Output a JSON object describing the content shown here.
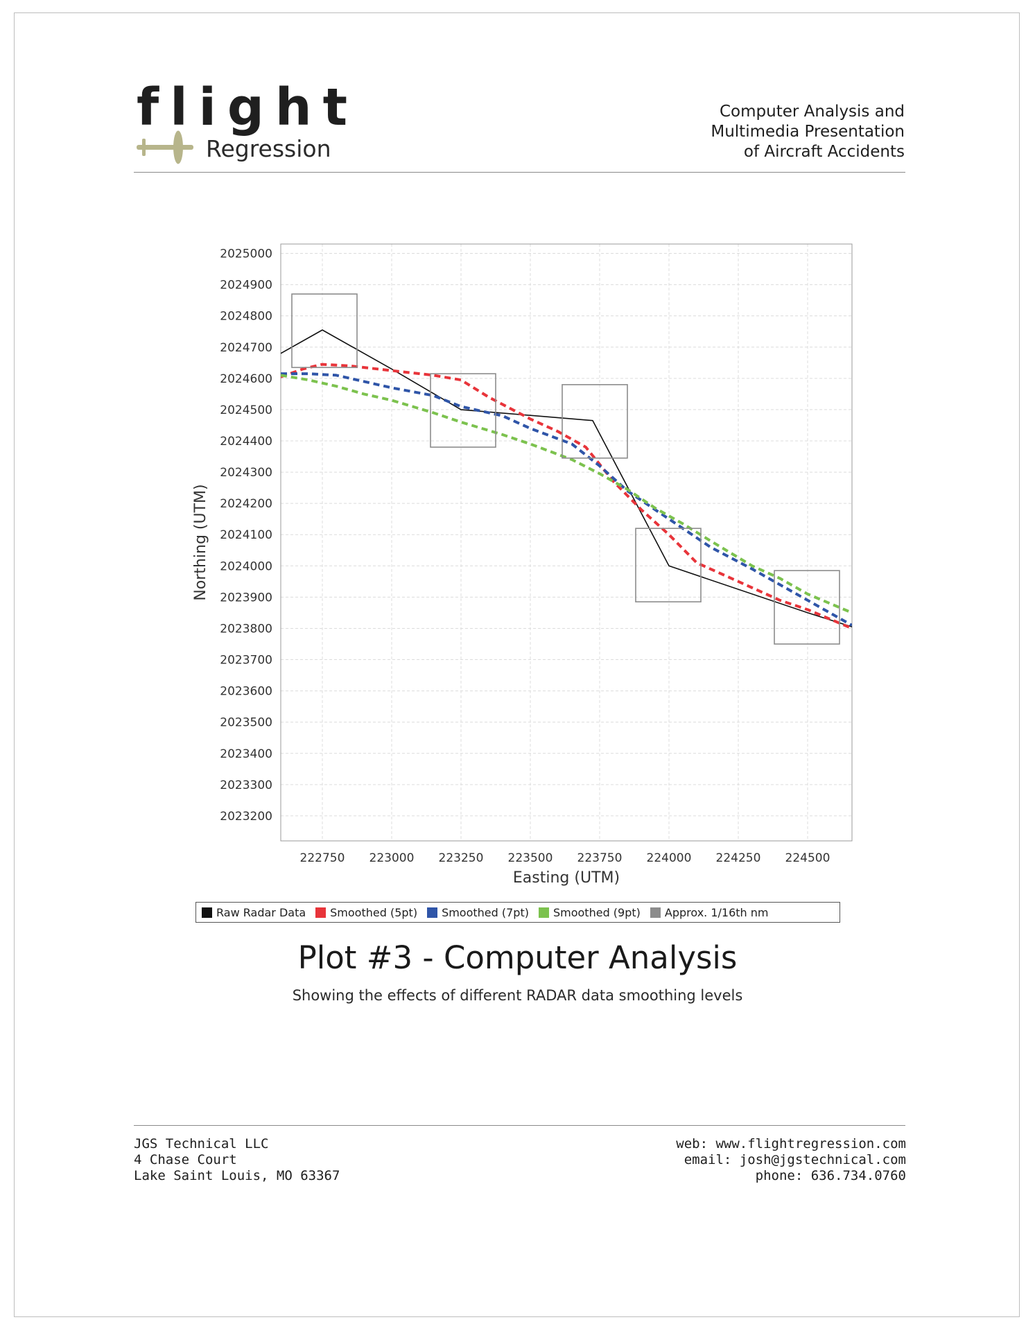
{
  "header": {
    "logo_word": "flight",
    "logo_sub": "Regression",
    "tagline": [
      "Computer Analysis and",
      "Multimedia Presentation",
      "of Aircraft Accidents"
    ]
  },
  "legend": [
    {
      "label": "Raw Radar Data",
      "color": "#111111"
    },
    {
      "label": "Smoothed (5pt)",
      "color": "#e8343a"
    },
    {
      "label": "Smoothed (7pt)",
      "color": "#2f55a8"
    },
    {
      "label": "Smoothed (9pt)",
      "color": "#7cc24e"
    },
    {
      "label": "Approx. 1/16th nm",
      "color": "#8c8c8c"
    }
  ],
  "plot_title": "Plot #3 - Computer Analysis",
  "plot_subtitle": "Showing the effects of different RADAR data smoothing levels",
  "footer": {
    "left": [
      "JGS Technical LLC",
      "4 Chase Court",
      "Lake Saint Louis, MO 63367"
    ],
    "right": [
      "web: www.flightregression.com",
      "email: josh@jgstechnical.com",
      "phone: 636.734.0760"
    ]
  },
  "chart_data": {
    "type": "line",
    "title": "",
    "xlabel": "Easting (UTM)",
    "ylabel": "Northing (UTM)",
    "xlim": [
      222600,
      224660
    ],
    "ylim": [
      2023120,
      2025030
    ],
    "xticks": [
      222750,
      223000,
      223250,
      223500,
      223750,
      224000,
      224250,
      224500
    ],
    "yticks": [
      2023200,
      2023300,
      2023400,
      2023500,
      2023600,
      2023700,
      2023800,
      2023900,
      2024000,
      2024100,
      2024200,
      2024300,
      2024400,
      2024500,
      2024600,
      2024700,
      2024800,
      2024900,
      2025000
    ],
    "grid": true,
    "legend_position": "bottom",
    "series": [
      {
        "name": "Raw Radar Data",
        "color": "#111111",
        "dashed": false,
        "x": [
          222600,
          222750,
          223000,
          223250,
          223725,
          224000,
          224500,
          224660
        ],
        "y": [
          2024680,
          2024755,
          2024630,
          2024500,
          2024465,
          2024000,
          2023850,
          2023805
        ]
      },
      {
        "name": "Smoothed (5pt)",
        "color": "#e8343a",
        "dashed": true,
        "x": [
          222600,
          222680,
          222750,
          222850,
          223000,
          223150,
          223250,
          223350,
          223500,
          223600,
          223700,
          223800,
          223900,
          224000,
          224100,
          224250,
          224400,
          224500,
          224660
        ],
        "y": [
          2024605,
          2024630,
          2024645,
          2024640,
          2024625,
          2024610,
          2024595,
          2024540,
          2024470,
          2024430,
          2024380,
          2024270,
          2024180,
          2024100,
          2024010,
          2023950,
          2023890,
          2023860,
          2023800
        ]
      },
      {
        "name": "Smoothed (7pt)",
        "color": "#2f55a8",
        "dashed": true,
        "x": [
          222600,
          222700,
          222800,
          222900,
          223000,
          223150,
          223250,
          223400,
          223500,
          223650,
          223750,
          223850,
          223950,
          224050,
          224150,
          224300,
          224400,
          224500,
          224660
        ],
        "y": [
          2024615,
          2024615,
          2024610,
          2024590,
          2024570,
          2024545,
          2024510,
          2024480,
          2024440,
          2024390,
          2024320,
          2024240,
          2024180,
          2024120,
          2024060,
          2023990,
          2023940,
          2023890,
          2023810
        ]
      },
      {
        "name": "Smoothed (9pt)",
        "color": "#7cc24e",
        "dashed": true,
        "x": [
          222600,
          222700,
          222800,
          222900,
          223000,
          223150,
          223250,
          223400,
          223500,
          223650,
          223750,
          223850,
          223950,
          224050,
          224150,
          224300,
          224400,
          224500,
          224660
        ],
        "y": [
          2024610,
          2024595,
          2024575,
          2024550,
          2024530,
          2024490,
          2024460,
          2024420,
          2024390,
          2024340,
          2024295,
          2024245,
          2024185,
          2024135,
          2024080,
          2024000,
          2023960,
          2023910,
          2023850
        ]
      },
      {
        "name": "Approx. 1/16th nm",
        "color": "#8c8c8c",
        "type": "boxes",
        "boxes": [
          {
            "x0": 222640,
            "x1": 222875,
            "y0": 2024635,
            "y1": 2024870
          },
          {
            "x0": 223140,
            "x1": 223375,
            "y0": 2024380,
            "y1": 2024615
          },
          {
            "x0": 223615,
            "x1": 223850,
            "y0": 2024345,
            "y1": 2024580
          },
          {
            "x0": 223880,
            "x1": 224115,
            "y0": 2023885,
            "y1": 2024120
          },
          {
            "x0": 224380,
            "x1": 224615,
            "y0": 2023750,
            "y1": 2023985
          }
        ]
      }
    ]
  }
}
